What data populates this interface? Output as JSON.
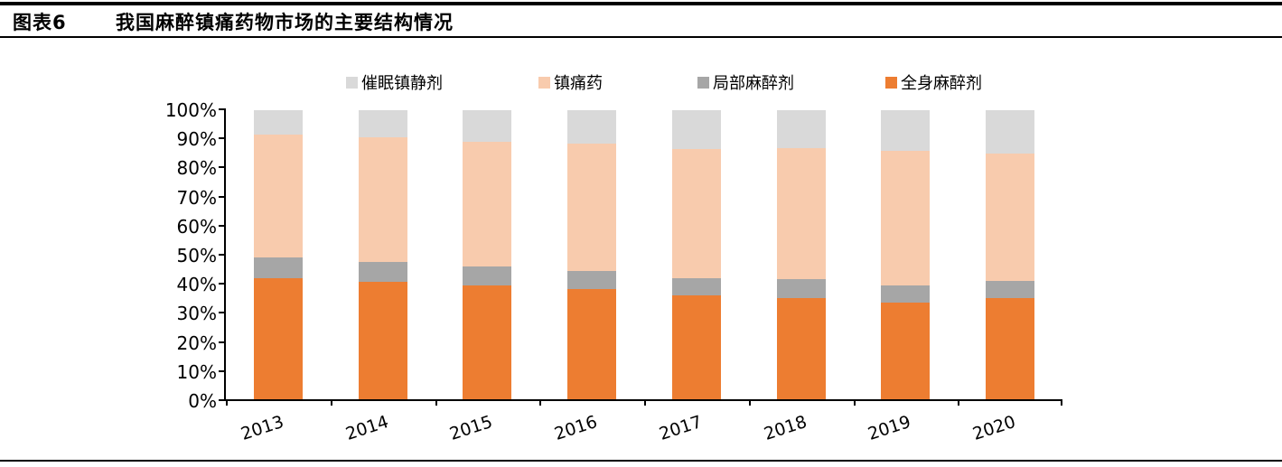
{
  "header": {
    "figure_label": "图表6",
    "title": "我国麻醉镇痛药物市场的主要结构情况"
  },
  "legend": {
    "items": [
      {
        "label": "催眠镇静剂",
        "color": "#D9D9D9"
      },
      {
        "label": "镇痛药",
        "color": "#F8CBAD"
      },
      {
        "label": "局部麻醉剂",
        "color": "#A6A6A6"
      },
      {
        "label": "全身麻醉剂",
        "color": "#ED7D31"
      }
    ]
  },
  "chart_data": {
    "type": "bar",
    "subtype": "stacked-100-percent",
    "categories": [
      "2013",
      "2014",
      "2015",
      "2016",
      "2017",
      "2018",
      "2019",
      "2020"
    ],
    "series": [
      {
        "name": "全身麻醉剂",
        "key": "general-anesthetics",
        "color": "#ED7D31",
        "values": [
          42,
          40.5,
          39.5,
          38,
          36,
          35,
          33.5,
          35
        ]
      },
      {
        "name": "局部麻醉剂",
        "key": "local-anesthetics",
        "color": "#A6A6A6",
        "values": [
          7,
          7,
          6.5,
          6.5,
          6,
          6.5,
          6,
          6
        ]
      },
      {
        "name": "镇痛药",
        "key": "analgesics",
        "color": "#F8CBAD",
        "values": [
          42.5,
          43,
          43,
          44,
          44.5,
          45.5,
          46.5,
          44
        ]
      },
      {
        "name": "催眠镇静剂",
        "key": "sedative-hypnotics",
        "color": "#D9D9D9",
        "values": [
          8.5,
          9.5,
          11,
          11.5,
          13.5,
          13,
          14,
          15
        ]
      }
    ],
    "y_ticks": [
      "0%",
      "10%",
      "20%",
      "30%",
      "40%",
      "50%",
      "60%",
      "70%",
      "80%",
      "90%",
      "100%"
    ],
    "ylim": [
      0,
      100
    ],
    "grid": false,
    "legend_position": "top",
    "unit": "percent"
  }
}
